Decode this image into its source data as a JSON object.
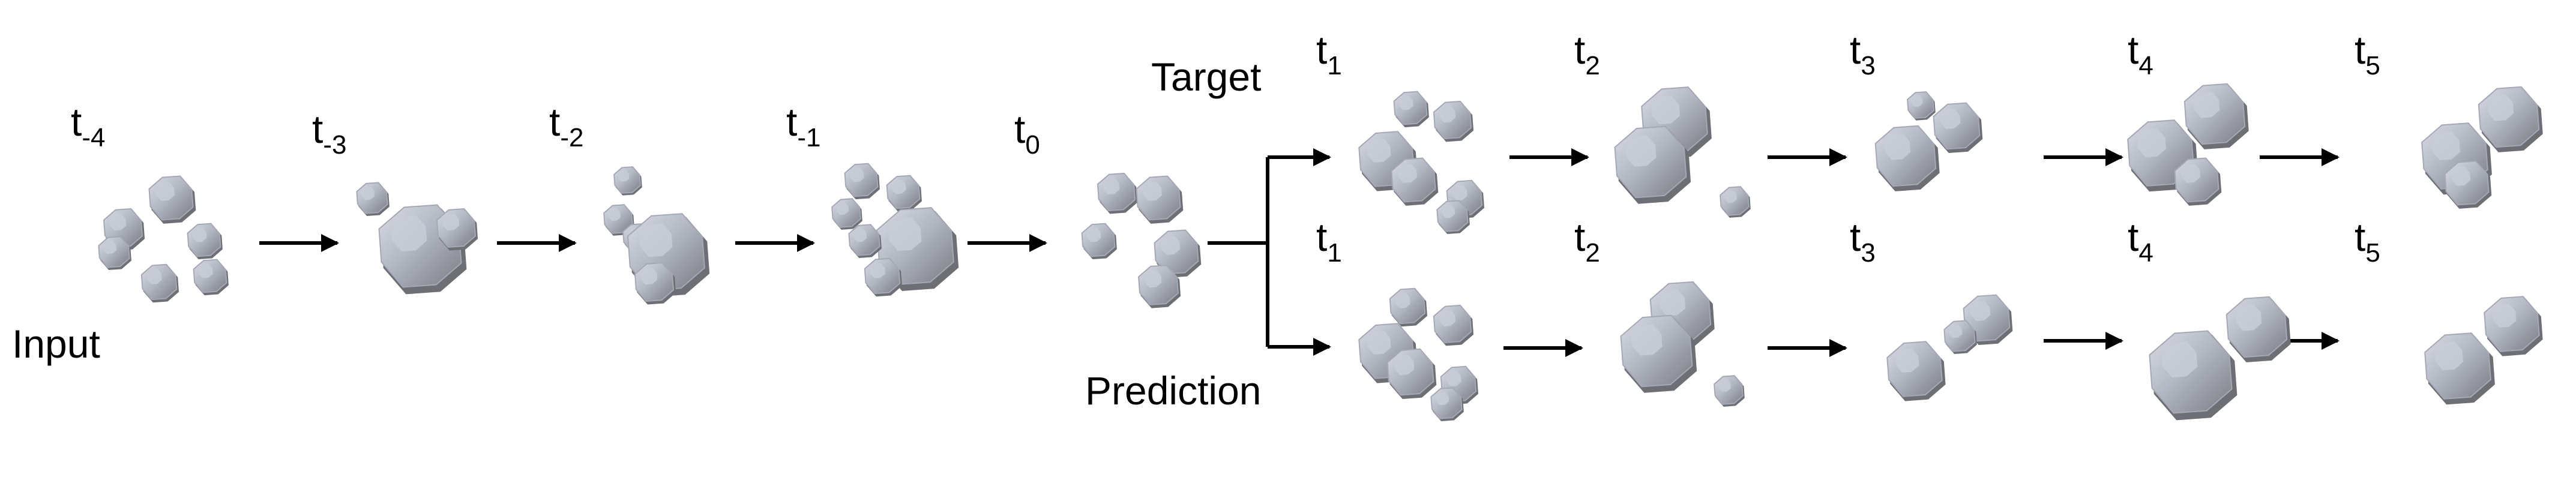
{
  "labels": {
    "input": "Input",
    "target": "Target",
    "prediction": "Prediction",
    "time_base": "t",
    "input_steps": [
      "-4",
      "-3",
      "-2",
      "-1",
      "0"
    ],
    "target_steps": [
      "1",
      "2",
      "3",
      "4",
      "5"
    ],
    "prediction_steps": [
      "1",
      "2",
      "3",
      "4",
      "5"
    ]
  },
  "colors": {
    "cluster_light": "#c8ccd6",
    "cluster_mid": "#a4a9b5",
    "cluster_dark": "#6d6f74",
    "arrow": "#000000"
  }
}
